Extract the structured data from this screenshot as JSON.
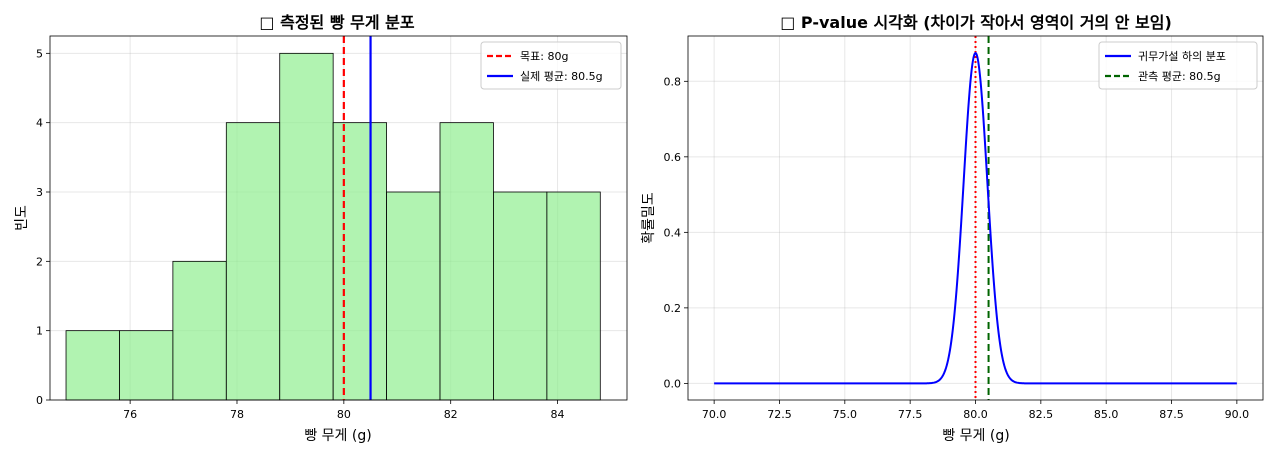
{
  "chart_data": [
    {
      "type": "bar",
      "title": "□ 측정된 빵 무게 분포",
      "xlabel": "빵 무게 (g)",
      "ylabel": "빈도",
      "xlim": [
        74.5,
        85.3
      ],
      "ylim": [
        0,
        5.25
      ],
      "xticks": [
        76,
        78,
        80,
        82,
        84
      ],
      "yticks": [
        0,
        1,
        2,
        3,
        4,
        5
      ],
      "grid": true,
      "legend_position": "top-right",
      "bar_color": "#90ee90",
      "bins": [
        {
          "x0": 74.8,
          "x1": 75.8,
          "count": 1
        },
        {
          "x0": 75.8,
          "x1": 76.8,
          "count": 1
        },
        {
          "x0": 76.8,
          "x1": 77.8,
          "count": 2
        },
        {
          "x0": 77.8,
          "x1": 78.8,
          "count": 4
        },
        {
          "x0": 78.8,
          "x1": 79.8,
          "count": 5
        },
        {
          "x0": 79.8,
          "x1": 80.8,
          "count": 4
        },
        {
          "x0": 80.8,
          "x1": 81.8,
          "count": 3
        },
        {
          "x0": 81.8,
          "x1": 82.8,
          "count": 4
        },
        {
          "x0": 82.8,
          "x1": 83.8,
          "count": 3
        },
        {
          "x0": 83.8,
          "x1": 84.8,
          "count": 3
        }
      ],
      "vlines": [
        {
          "name": "목표: 80g",
          "x": 80,
          "color": "#ff0000",
          "style": "dashed"
        },
        {
          "name": "실제 평균: 80.5g",
          "x": 80.5,
          "color": "#0000ff",
          "style": "solid"
        }
      ]
    },
    {
      "type": "line",
      "title": "□ P-value 시각화 (차이가 작아서 영역이 거의 안 보임)",
      "xlabel": "빵 무게 (g)",
      "ylabel": "확률밀도",
      "xlim": [
        69.0,
        91.0
      ],
      "ylim": [
        -0.044,
        0.92
      ],
      "xticks": [
        70.0,
        72.5,
        75.0,
        77.5,
        80.0,
        82.5,
        85.0,
        87.5,
        90.0
      ],
      "yticks": [
        0.0,
        0.2,
        0.4,
        0.6,
        0.8
      ],
      "grid": true,
      "legend_position": "top-right",
      "series": [
        {
          "name": "귀무가설 하의 분포",
          "type": "normal_pdf",
          "mean": 80,
          "sd": 0.456,
          "x_range": [
            70,
            90
          ],
          "color": "#0000ff"
        }
      ],
      "vlines": [
        {
          "name": "",
          "x": 80,
          "color": "#ff0000",
          "style": "dotted"
        },
        {
          "name": "관측 평균: 80.5g",
          "x": 80.5,
          "color": "#006400",
          "style": "dashed"
        }
      ]
    }
  ]
}
